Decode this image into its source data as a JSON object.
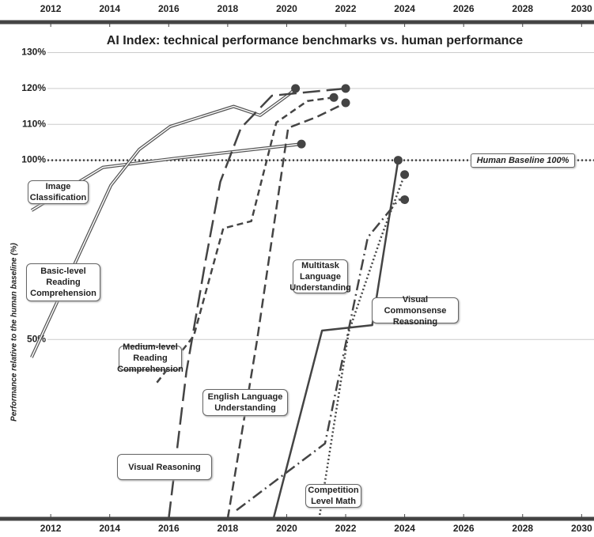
{
  "chart_data": {
    "type": "line",
    "title": "AI Index: technical performance benchmarks vs. human performance",
    "y_label": "Performance relative to the human baseline (%)",
    "xlim": [
      2010.28,
      2030.42
    ],
    "xticks": [
      2012,
      2014,
      2016,
      2018,
      2020,
      2022,
      2024,
      2026,
      2028,
      2030
    ],
    "ylim": [
      0,
      138.5
    ],
    "yticks": [
      {
        "value": 50,
        "label": "50%"
      },
      {
        "value": 100,
        "label": "100%"
      },
      {
        "value": 110,
        "label": "110%"
      },
      {
        "value": 120,
        "label": "120%"
      },
      {
        "value": 130,
        "label": "130%"
      }
    ],
    "grid": true,
    "baseline": {
      "value": 100,
      "label": "Human Baseline 100%"
    },
    "series": [
      {
        "name": "Image Classification",
        "color": "#555555",
        "style": "double",
        "x": [
          2011.35,
          2013.77,
          2016.2,
          2020.5
        ],
        "values": [
          86,
          98,
          100.5,
          104.5
        ]
      },
      {
        "name": "Basic-level Reading Comprehension",
        "color": "#555555",
        "style": "double",
        "x": [
          2011.35,
          2014.04,
          2015,
          2016.05,
          2018.2,
          2019.1,
          2020.1,
          2020.3
        ],
        "values": [
          45,
          93,
          103,
          109.4,
          115,
          112.5,
          118.5,
          120
        ]
      },
      {
        "name": "Medium-level Reading Comprehension",
        "color": "#444444",
        "style": "long-dash",
        "x": [
          2016,
          2016.6,
          2017.25,
          2017.75,
          2018.45,
          2019.5,
          2022
        ],
        "values": [
          0,
          41,
          72,
          94,
          109,
          118,
          120
        ]
      },
      {
        "name": "Visual Reasoning",
        "color": "#444444",
        "style": "dash",
        "x": [
          2015.6,
          2016.85,
          2017.85,
          2018.8,
          2019.65,
          2020.7,
          2021.6
        ],
        "values": [
          38,
          51,
          81,
          83,
          110.5,
          116.5,
          117.5
        ]
      },
      {
        "name": "English Language Understanding",
        "color": "#444444",
        "style": "medium-dash",
        "x": [
          2018,
          2019,
          2020.05,
          2021,
          2022
        ],
        "values": [
          0,
          50,
          109,
          112,
          116
        ]
      },
      {
        "name": "Multitask Language Understanding",
        "color": "#444444",
        "style": "solid",
        "x": [
          2019.55,
          2021.2,
          2022.9,
          2023.78
        ],
        "values": [
          0,
          52.5,
          54,
          100
        ]
      },
      {
        "name": "Visual Commonsense Reasoning",
        "color": "#444444",
        "style": "dash-dot",
        "x": [
          2018.3,
          2021.3,
          2022.75,
          2023.8,
          2024
        ],
        "values": [
          2.4,
          21,
          78.5,
          89,
          89
        ]
      },
      {
        "name": "Competition Level Math",
        "color": "#444444",
        "style": "dot",
        "x": [
          2021.1,
          2022.1,
          2023.2,
          2024
        ],
        "values": [
          0,
          52,
          78.5,
          96
        ]
      }
    ]
  }
}
